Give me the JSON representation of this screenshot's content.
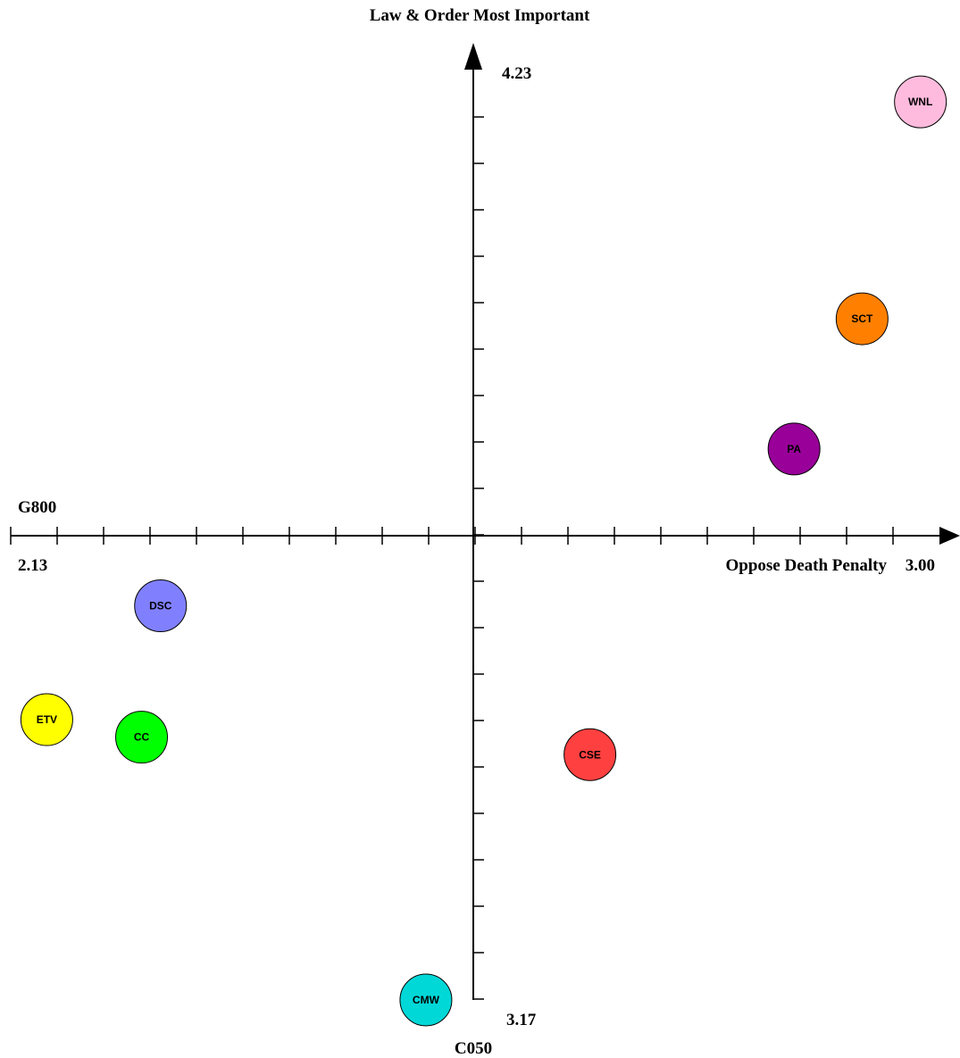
{
  "chart_data": {
    "type": "scatter",
    "title": "",
    "y_top_label": "Law & Order Most Important",
    "y_bottom_label": "C050",
    "x_left_label": "G800",
    "x_right_label": "Oppose Death Penalty",
    "x_min_label": "2.13",
    "x_max_label": "3.00",
    "y_max_label": "4.23",
    "y_min_label": "3.17",
    "xlim": [
      2.13,
      3.0
    ],
    "ylim": [
      3.17,
      4.23
    ],
    "x_center": 2.57,
    "y_center": 3.7,
    "grid": false,
    "points": [
      {
        "label": "WNL",
        "x": 3.03,
        "y": 4.2,
        "color": "#FFBBDD"
      },
      {
        "label": "SCT",
        "x": 2.97,
        "y": 3.95,
        "color": "#FF8000"
      },
      {
        "label": "PA",
        "x": 2.9,
        "y": 3.8,
        "color": "#990099"
      },
      {
        "label": "DSC",
        "x": 2.24,
        "y": 3.62,
        "color": "#8080FF"
      },
      {
        "label": "ETV",
        "x": 2.12,
        "y": 3.49,
        "color": "#FFFF00"
      },
      {
        "label": "CC",
        "x": 2.22,
        "y": 3.47,
        "color": "#00FF00"
      },
      {
        "label": "CSE",
        "x": 2.69,
        "y": 3.45,
        "color": "#FF4040"
      },
      {
        "label": "CMW",
        "x": 2.52,
        "y": 3.17,
        "color": "#00D8D8"
      }
    ]
  }
}
